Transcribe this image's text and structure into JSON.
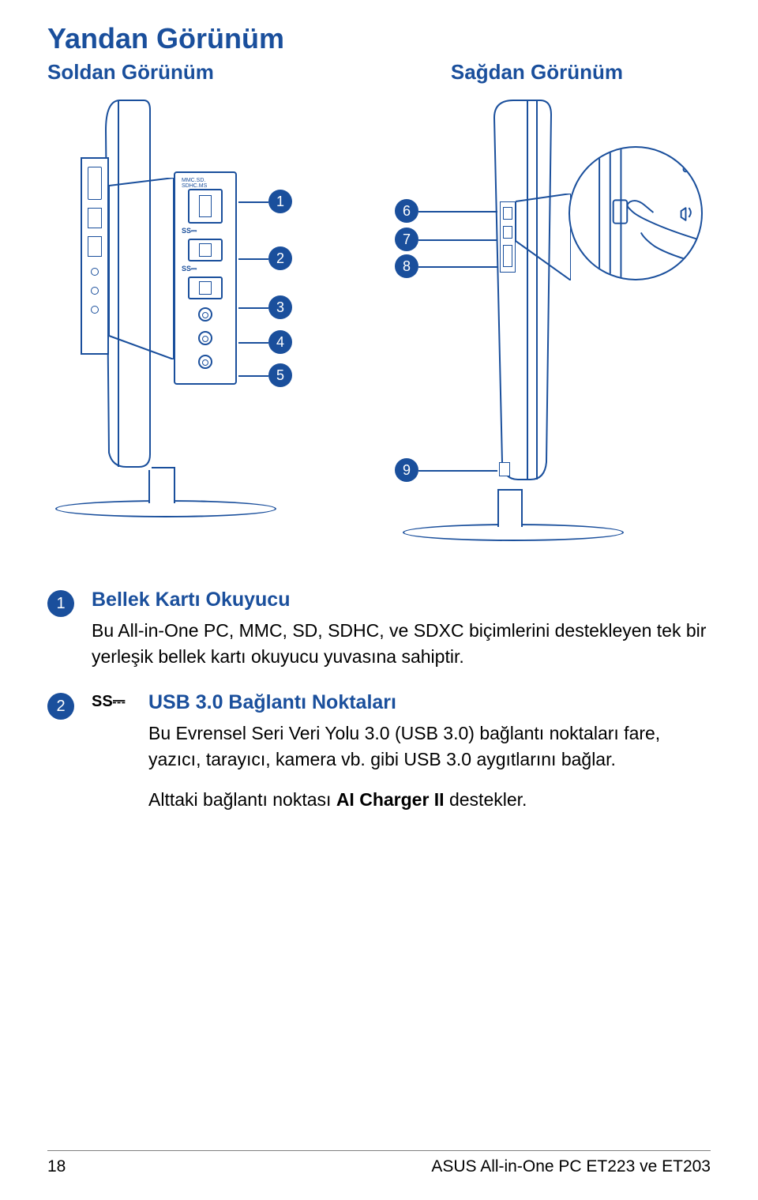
{
  "colors": {
    "brand": "#1a4f9c",
    "text": "#000000",
    "rule": "#808080",
    "bg": "#ffffff"
  },
  "headings": {
    "main": "Yandan Görünüm",
    "left": "Soldan Görünüm",
    "right": "Sağdan Görünüm"
  },
  "left_ports": {
    "sd_label": "MMC.SD.\nSDHC.MS",
    "ss_label": "SS⎓"
  },
  "callouts": {
    "left": [
      "1",
      "2",
      "3",
      "4",
      "5"
    ],
    "right": [
      "6",
      "7",
      "8",
      "9"
    ]
  },
  "items": [
    {
      "n": "1",
      "icon": "",
      "title": "Bellek Kartı Okuyucu",
      "paragraphs": [
        "Bu All-in-One PC, MMC, SD, SDHC, ve SDXC biçimlerini destekleyen tek bir yerleşik bellek kartı okuyucu yuvasına sahiptir."
      ]
    },
    {
      "n": "2",
      "icon": "SS⎓",
      "title": "USB 3.0 Bağlantı Noktaları",
      "paragraphs": [
        "Bu Evrensel Seri Veri Yolu 3.0 (USB 3.0) bağlantı noktaları fare, yazıcı, tarayıcı, kamera vb. gibi USB 3.0 aygıtlarını bağlar.",
        "Alttaki bağlantı noktası <b>AI Charger II</b> destekler."
      ]
    }
  ],
  "footer": {
    "page": "18",
    "product": "ASUS All-in-One PC ET223 ve ET203"
  }
}
